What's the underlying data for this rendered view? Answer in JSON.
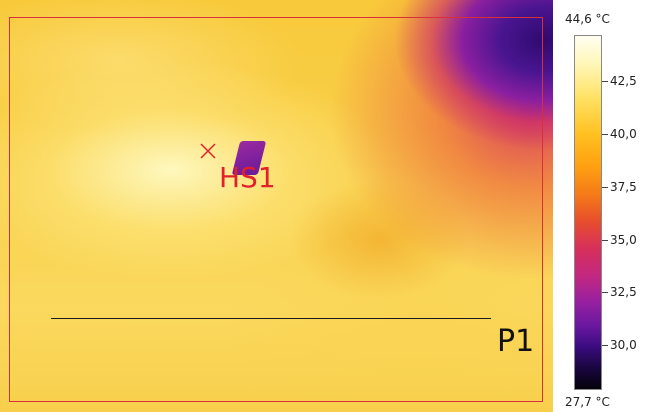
{
  "thermal_image": {
    "hotspot_label": "HS1",
    "profile_label": "P1"
  },
  "scale": {
    "max_label": "44,6 °C",
    "min_label": "27,7 °C",
    "ticks": [
      "42,5",
      "40,0",
      "37,5",
      "35,0",
      "32,5",
      "30,0"
    ]
  },
  "colors": {
    "marker_red": "#e0202a",
    "profile_line": "#1a1a1a"
  }
}
